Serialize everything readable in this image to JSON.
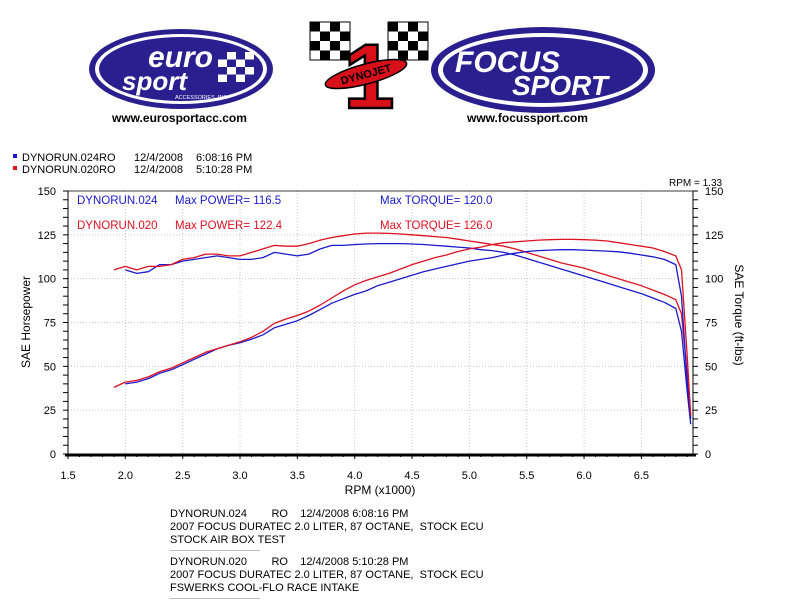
{
  "logos": {
    "eurosport": {
      "word_top": "euro",
      "word_bottom": "sport",
      "tagline": "ACCESSORIES, INC",
      "url": "www.eurosportacc.com",
      "color": "#2a1f8f"
    },
    "dynojet": {
      "numeral": "1",
      "word": "DYNOJET",
      "color": "#d8101a"
    },
    "focussport": {
      "word_top": "FOCUS",
      "word_bottom": "SPORT",
      "url": "www.focussport.com",
      "color": "#2a1f8f"
    }
  },
  "runs_legend": [
    {
      "name": "DYNORUN.024RO",
      "date": "12/4/2008",
      "time": "6:08:16 PM",
      "color": "#1a1acc"
    },
    {
      "name": "DYNORUN.020RO",
      "date": "12/4/2008",
      "time": "5:10:28 PM",
      "color": "#dd1122"
    }
  ],
  "rpm_note": "RPM = 1.33",
  "annotations": {
    "run1": {
      "label": "DYNORUN.024",
      "power": "Max POWER= 116.5",
      "torque": "Max TORQUE= 120.0",
      "color": "#1a1acc"
    },
    "run2": {
      "label": "DYNORUN.020",
      "power": "Max POWER= 122.4",
      "torque": "Max TORQUE= 126.0",
      "color": "#dd1122"
    }
  },
  "run_notes": [
    {
      "header": "DYNORUN.024        RO    12/4/2008 6:08:16 PM",
      "line1": "2007 FOCUS DURATEC 2.0 LITER, 87 OCTANE,  STOCK ECU",
      "line2": "STOCK AIR BOX TEST"
    },
    {
      "header": "DYNORUN.020        RO    12/4/2008 5:10:28 PM",
      "line1": "2007 FOCUS DURATEC 2.0 LITER, 87 OCTANE,  STOCK ECU",
      "line2": "FSWERKS COOL-FLO RACE INTAKE"
    }
  ],
  "chart_data": {
    "type": "line",
    "xlabel": "RPM (x1000)",
    "ylabel": "SAE Horsepower",
    "y2label": "SAE Torque (ft-lbs)",
    "xlim": [
      1.5,
      6.95
    ],
    "ylim": [
      0,
      150
    ],
    "y2lim": [
      0,
      150
    ],
    "xticks": [
      "1.5",
      "2.0",
      "2.5",
      "3.0",
      "3.5",
      "4.0",
      "4.5",
      "5.0",
      "5.5",
      "6.0",
      "6.5"
    ],
    "yticks": [
      "0",
      "25",
      "50",
      "75",
      "100",
      "125",
      "150"
    ],
    "y2ticks": [
      "0",
      "25",
      "50",
      "75",
      "100",
      "125",
      "150"
    ],
    "grid": true,
    "series": [
      {
        "name": "DYNORUN.024",
        "quantity": "torque",
        "color": "#1a1acc",
        "x": [
          2.0,
          2.1,
          2.2,
          2.3,
          2.4,
          2.5,
          2.6,
          2.7,
          2.8,
          2.9,
          3.0,
          3.1,
          3.2,
          3.3,
          3.4,
          3.5,
          3.6,
          3.7,
          3.8,
          3.9,
          4.0,
          4.1,
          4.2,
          4.3,
          4.4,
          4.5,
          4.6,
          4.7,
          4.8,
          4.9,
          5.0,
          5.1,
          5.2,
          5.3,
          5.4,
          5.5,
          5.6,
          5.7,
          5.8,
          5.9,
          6.0,
          6.1,
          6.2,
          6.3,
          6.4,
          6.5,
          6.6,
          6.7,
          6.8,
          6.85,
          6.9,
          6.93
        ],
        "y": [
          105,
          103,
          104,
          108,
          108,
          110,
          111,
          112,
          113,
          112,
          111,
          111,
          112,
          115,
          114,
          113,
          114,
          117,
          119,
          119,
          119.5,
          119.8,
          120,
          120,
          120,
          119.8,
          119.5,
          119,
          118.5,
          118,
          117.5,
          116.5,
          116,
          115,
          113.5,
          111.5,
          109.5,
          107.5,
          105.5,
          103.5,
          101.5,
          99.5,
          97.5,
          95.5,
          93.5,
          91.5,
          89,
          86.5,
          83,
          70,
          35,
          17
        ]
      },
      {
        "name": "DYNORUN.020",
        "quantity": "torque",
        "color": "#dd1122",
        "x": [
          1.9,
          2.0,
          2.1,
          2.2,
          2.3,
          2.4,
          2.5,
          2.6,
          2.7,
          2.8,
          2.9,
          3.0,
          3.1,
          3.2,
          3.3,
          3.4,
          3.5,
          3.6,
          3.7,
          3.8,
          3.9,
          4.0,
          4.1,
          4.2,
          4.3,
          4.4,
          4.5,
          4.6,
          4.7,
          4.8,
          4.9,
          5.0,
          5.1,
          5.2,
          5.3,
          5.4,
          5.5,
          5.6,
          5.7,
          5.8,
          5.9,
          6.0,
          6.1,
          6.2,
          6.3,
          6.4,
          6.5,
          6.6,
          6.7,
          6.8,
          6.85,
          6.9,
          6.93
        ],
        "y": [
          105,
          107,
          105,
          107,
          107,
          108,
          111,
          112,
          114,
          114,
          113,
          113,
          115,
          117,
          119,
          118.5,
          118.5,
          120,
          122,
          123.5,
          124.5,
          125.5,
          126,
          126,
          125.8,
          125.5,
          125,
          124.5,
          124,
          123.5,
          122.5,
          121.5,
          120.5,
          119.5,
          118.5,
          117,
          115,
          113,
          111,
          109,
          107.5,
          106,
          104,
          102,
          100,
          98,
          96,
          93.5,
          91,
          88,
          80,
          45,
          22
        ]
      },
      {
        "name": "DYNORUN.024",
        "quantity": "power",
        "color": "#1a1acc",
        "x": [
          2.0,
          2.1,
          2.2,
          2.3,
          2.4,
          2.5,
          2.6,
          2.7,
          2.8,
          2.9,
          3.0,
          3.1,
          3.2,
          3.3,
          3.4,
          3.5,
          3.6,
          3.7,
          3.8,
          3.9,
          4.0,
          4.1,
          4.2,
          4.3,
          4.4,
          4.5,
          4.6,
          4.7,
          4.8,
          4.9,
          5.0,
          5.1,
          5.2,
          5.3,
          5.4,
          5.5,
          5.6,
          5.7,
          5.8,
          5.9,
          6.0,
          6.1,
          6.2,
          6.3,
          6.4,
          6.5,
          6.6,
          6.7,
          6.8,
          6.85,
          6.9,
          6.93
        ],
        "y": [
          40,
          41,
          43,
          46,
          48,
          51,
          54,
          57,
          60,
          62,
          63.5,
          65.5,
          68,
          72,
          74,
          76,
          79,
          82.5,
          86,
          88.5,
          91,
          93,
          96,
          98,
          100,
          102,
          104,
          105.5,
          107,
          108.5,
          110,
          111,
          112,
          113.5,
          114.5,
          115.5,
          116,
          116.3,
          116.5,
          116.5,
          116.3,
          116,
          115.7,
          115.3,
          114.5,
          113.5,
          112.5,
          111,
          108,
          90,
          40,
          20
        ]
      },
      {
        "name": "DYNORUN.020",
        "quantity": "power",
        "color": "#dd1122",
        "x": [
          1.9,
          2.0,
          2.1,
          2.2,
          2.3,
          2.4,
          2.5,
          2.6,
          2.7,
          2.8,
          2.9,
          3.0,
          3.1,
          3.2,
          3.3,
          3.4,
          3.5,
          3.6,
          3.7,
          3.8,
          3.9,
          4.0,
          4.1,
          4.2,
          4.3,
          4.4,
          4.5,
          4.6,
          4.7,
          4.8,
          4.9,
          5.0,
          5.1,
          5.2,
          5.3,
          5.4,
          5.5,
          5.6,
          5.7,
          5.8,
          5.9,
          6.0,
          6.1,
          6.2,
          6.3,
          6.4,
          6.5,
          6.6,
          6.7,
          6.8,
          6.85,
          6.9,
          6.93
        ],
        "y": [
          38,
          41,
          42,
          44,
          47,
          49,
          52,
          55,
          58,
          60,
          62,
          64,
          66.5,
          70,
          74.5,
          77,
          79,
          81.5,
          85,
          89,
          93,
          96.5,
          99,
          101,
          103,
          105.5,
          108,
          110,
          112,
          113.5,
          115.5,
          117,
          118,
          119.5,
          120.5,
          121,
          121.5,
          122,
          122.2,
          122.4,
          122.4,
          122.2,
          122,
          121.5,
          120.5,
          119.5,
          118.5,
          117.5,
          115.5,
          113,
          105,
          55,
          22
        ]
      }
    ]
  }
}
